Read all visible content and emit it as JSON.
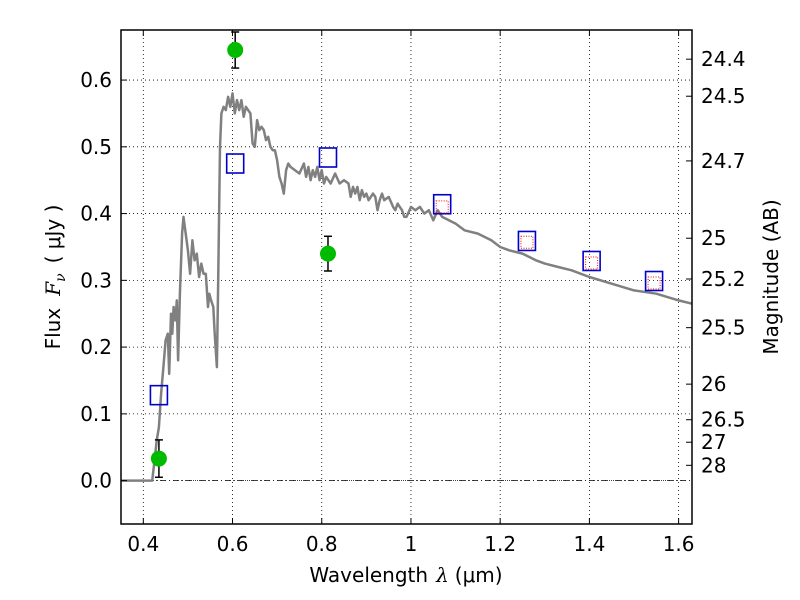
{
  "chart_data": {
    "type": "scatter",
    "xlabel_text": "Wavelength",
    "xlabel_symbol": "λ",
    "xlabel_unit": "(μm)",
    "ylabel_text": "Flux",
    "ylabel_symbol": "F",
    "ylabel_subscript": "ν",
    "ylabel_unit": "( μJy )",
    "y2label": "Magnitude (AB)",
    "xlim": [
      0.35,
      1.63
    ],
    "ylim": [
      -0.065,
      0.675
    ],
    "grid": true,
    "x_ticks": [
      0.4,
      0.6,
      0.8,
      1.0,
      1.2,
      1.4,
      1.6
    ],
    "x_tick_labels": [
      "0.4",
      "0.6",
      "0.8",
      "1",
      "1.2",
      "1.4",
      "1.6"
    ],
    "y_ticks": [
      0.0,
      0.1,
      0.2,
      0.3,
      0.4,
      0.5,
      0.6
    ],
    "y_tick_labels": [
      "0.0",
      "0.1",
      "0.2",
      "0.3",
      "0.4",
      "0.5",
      "0.6"
    ],
    "y2_ticks": [
      {
        "label": "24.4",
        "flux": 0.6313
      },
      {
        "label": "24.5",
        "flux": 0.5758
      },
      {
        "label": "24.7",
        "flux": 0.4789
      },
      {
        "label": "25",
        "flux": 0.3631
      },
      {
        "label": "25.2",
        "flux": 0.302
      },
      {
        "label": "25.5",
        "flux": 0.2291
      },
      {
        "label": "26",
        "flux": 0.1445
      },
      {
        "label": "26.5",
        "flux": 0.0912
      },
      {
        "label": "27",
        "flux": 0.0575
      },
      {
        "label": "28",
        "flux": 0.0229
      }
    ],
    "series": [
      {
        "style": "line",
        "color": "#808080",
        "points": [
          [
            0.35,
            0.0
          ],
          [
            0.42,
            0.0
          ],
          [
            0.425,
            0.03
          ],
          [
            0.43,
            0.06
          ],
          [
            0.435,
            0.08
          ],
          [
            0.44,
            0.13
          ],
          [
            0.445,
            0.17
          ],
          [
            0.45,
            0.21
          ],
          [
            0.455,
            0.22
          ],
          [
            0.458,
            0.16
          ],
          [
            0.462,
            0.25
          ],
          [
            0.465,
            0.22
          ],
          [
            0.468,
            0.26
          ],
          [
            0.472,
            0.24
          ],
          [
            0.475,
            0.27
          ],
          [
            0.478,
            0.18
          ],
          [
            0.482,
            0.28
          ],
          [
            0.487,
            0.37
          ],
          [
            0.49,
            0.395
          ],
          [
            0.495,
            0.37
          ],
          [
            0.5,
            0.345
          ],
          [
            0.505,
            0.31
          ],
          [
            0.51,
            0.36
          ],
          [
            0.515,
            0.33
          ],
          [
            0.52,
            0.34
          ],
          [
            0.525,
            0.305
          ],
          [
            0.53,
            0.325
          ],
          [
            0.535,
            0.31
          ],
          [
            0.54,
            0.31
          ],
          [
            0.545,
            0.26
          ],
          [
            0.548,
            0.28
          ],
          [
            0.552,
            0.27
          ],
          [
            0.557,
            0.26
          ],
          [
            0.56,
            0.22
          ],
          [
            0.565,
            0.17
          ],
          [
            0.568,
            0.3
          ],
          [
            0.572,
            0.5
          ],
          [
            0.575,
            0.55
          ],
          [
            0.58,
            0.56
          ],
          [
            0.585,
            0.555
          ],
          [
            0.59,
            0.575
          ],
          [
            0.595,
            0.56
          ],
          [
            0.6,
            0.58
          ],
          [
            0.605,
            0.55
          ],
          [
            0.61,
            0.57
          ],
          [
            0.615,
            0.555
          ],
          [
            0.62,
            0.57
          ],
          [
            0.625,
            0.545
          ],
          [
            0.63,
            0.56
          ],
          [
            0.635,
            0.555
          ],
          [
            0.64,
            0.55
          ],
          [
            0.645,
            0.505
          ],
          [
            0.65,
            0.5
          ],
          [
            0.655,
            0.54
          ],
          [
            0.66,
            0.525
          ],
          [
            0.665,
            0.53
          ],
          [
            0.67,
            0.525
          ],
          [
            0.675,
            0.51
          ],
          [
            0.68,
            0.515
          ],
          [
            0.685,
            0.5
          ],
          [
            0.69,
            0.495
          ],
          [
            0.695,
            0.495
          ],
          [
            0.7,
            0.48
          ],
          [
            0.705,
            0.455
          ],
          [
            0.71,
            0.445
          ],
          [
            0.715,
            0.43
          ],
          [
            0.72,
            0.465
          ],
          [
            0.725,
            0.475
          ],
          [
            0.73,
            0.47
          ],
          [
            0.74,
            0.465
          ],
          [
            0.75,
            0.46
          ],
          [
            0.76,
            0.475
          ],
          [
            0.765,
            0.455
          ],
          [
            0.77,
            0.47
          ],
          [
            0.775,
            0.45
          ],
          [
            0.78,
            0.465
          ],
          [
            0.785,
            0.455
          ],
          [
            0.79,
            0.47
          ],
          [
            0.795,
            0.45
          ],
          [
            0.8,
            0.465
          ],
          [
            0.805,
            0.445
          ],
          [
            0.81,
            0.455
          ],
          [
            0.82,
            0.445
          ],
          [
            0.83,
            0.46
          ],
          [
            0.84,
            0.445
          ],
          [
            0.85,
            0.45
          ],
          [
            0.86,
            0.445
          ],
          [
            0.865,
            0.425
          ],
          [
            0.87,
            0.44
          ],
          [
            0.875,
            0.43
          ],
          [
            0.88,
            0.44
          ],
          [
            0.885,
            0.42
          ],
          [
            0.89,
            0.435
          ],
          [
            0.895,
            0.425
          ],
          [
            0.9,
            0.43
          ],
          [
            0.905,
            0.42
          ],
          [
            0.91,
            0.425
          ],
          [
            0.915,
            0.43
          ],
          [
            0.92,
            0.425
          ],
          [
            0.925,
            0.405
          ],
          [
            0.93,
            0.42
          ],
          [
            0.935,
            0.43
          ],
          [
            0.94,
            0.42
          ],
          [
            0.95,
            0.425
          ],
          [
            0.96,
            0.41
          ],
          [
            0.965,
            0.405
          ],
          [
            0.97,
            0.415
          ],
          [
            0.975,
            0.41
          ],
          [
            0.98,
            0.405
          ],
          [
            0.985,
            0.395
          ],
          [
            0.99,
            0.395
          ],
          [
            1.0,
            0.41
          ],
          [
            1.01,
            0.405
          ],
          [
            1.02,
            0.41
          ],
          [
            1.03,
            0.4
          ],
          [
            1.04,
            0.405
          ],
          [
            1.05,
            0.39
          ],
          [
            1.06,
            0.405
          ],
          [
            1.07,
            0.395
          ],
          [
            1.1,
            0.385
          ],
          [
            1.12,
            0.375
          ],
          [
            1.15,
            0.37
          ],
          [
            1.18,
            0.36
          ],
          [
            1.2,
            0.35
          ],
          [
            1.22,
            0.345
          ],
          [
            1.25,
            0.34
          ],
          [
            1.28,
            0.33
          ],
          [
            1.3,
            0.325
          ],
          [
            1.33,
            0.32
          ],
          [
            1.36,
            0.315
          ],
          [
            1.4,
            0.305
          ],
          [
            1.45,
            0.295
          ],
          [
            1.5,
            0.285
          ],
          [
            1.55,
            0.28
          ],
          [
            1.6,
            0.27
          ],
          [
            1.63,
            0.265
          ]
        ]
      },
      {
        "style": "errorbar",
        "color": "#00bb00",
        "points": [
          {
            "x": 0.435,
            "y": 0.033,
            "err": 0.028
          },
          {
            "x": 0.606,
            "y": 0.645,
            "err": 0.027
          },
          {
            "x": 0.814,
            "y": 0.34,
            "err": 0.026
          }
        ]
      },
      {
        "style": "open-square",
        "color": "#0000cc",
        "points": [
          [
            0.435,
            0.128
          ],
          [
            0.606,
            0.475
          ],
          [
            0.814,
            0.484
          ],
          [
            1.07,
            0.414
          ],
          [
            1.26,
            0.359
          ],
          [
            1.405,
            0.329
          ],
          [
            1.545,
            0.299
          ]
        ]
      },
      {
        "style": "dotted-square",
        "color": "#ff0000",
        "points": [
          [
            1.07,
            0.41
          ],
          [
            1.26,
            0.357
          ],
          [
            1.405,
            0.326
          ],
          [
            1.545,
            0.296
          ]
        ]
      }
    ]
  }
}
